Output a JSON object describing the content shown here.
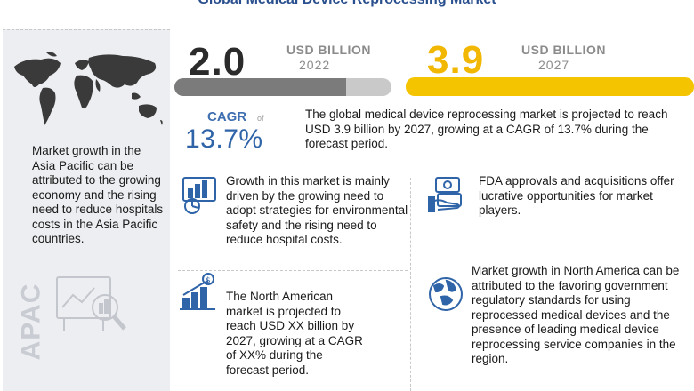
{
  "title": "Global Medical Device Reprocessing Market",
  "left_panel": {
    "text": "Market growth in the Asia Pacific can be attributed to the growing economy and the rising need to reduce hospitals costs in the Asia Pacific countries.",
    "watermark": "APAC",
    "icons": [
      "world-map-icon",
      "analytics-magnifier-icon"
    ]
  },
  "market_2022": {
    "value": "2.0",
    "unit": "USD BILLION",
    "year": "2022",
    "bar_fill": 0.79,
    "bar_color": "#7b7b7b"
  },
  "market_2027": {
    "value": "3.9",
    "unit": "USD BILLION",
    "year": "2027",
    "bar_fill": 1.0,
    "bar_color": "#f5c400"
  },
  "cagr": {
    "label": "CAGR",
    "of": "of",
    "value": "13.7%"
  },
  "summary": "The global medical device reprocessing market is projected to reach USD 3.9 billion by 2027, growing at a CAGR of 13.7% during the forecast period.",
  "points": {
    "growth": "Growth in this market is mainly driven by the growing need to adopt strategies for environmental safety and the rising need to reduce hospital costs.",
    "fda": "FDA approvals and acquisitions offer lucrative opportunities for market players.",
    "na_market": "The North American market is projected to reach USD XX billion by 2027, growing at a CAGR of XX% during the forecast period.",
    "na_growth": "Market growth in North America can be attributed to the favoring government regulatory standards for using reprocessed medical devices and the presence of leading medical device reprocessing service companies in the region."
  },
  "colors": {
    "accent_blue": "#2f64a8",
    "accent_yellow": "#f5c400",
    "title_blue": "#2a4f8e",
    "panel_gray": "#eceef1"
  }
}
